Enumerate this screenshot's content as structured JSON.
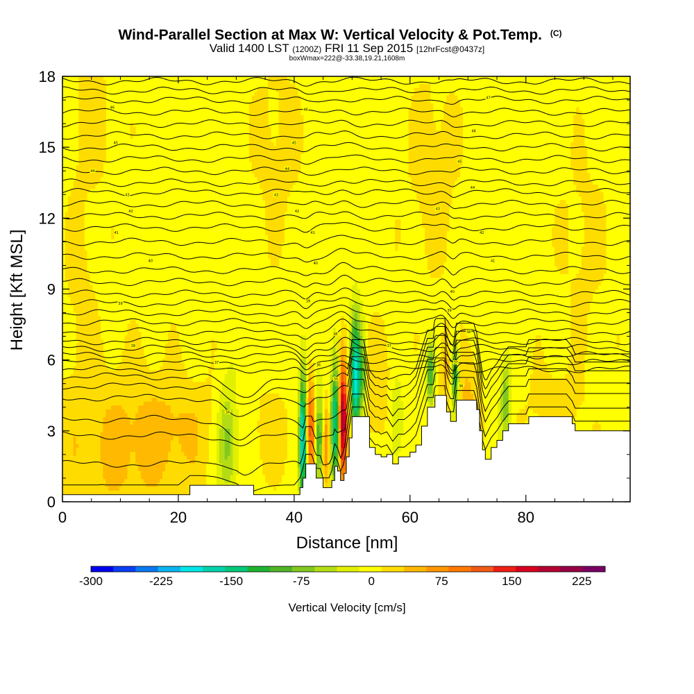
{
  "chart_data": {
    "type": "filled-contour-cross-section",
    "title": "Wind-Parallel Section at Max W: Vertical Velocity & Pot.Temp.",
    "title_mark": "(C)",
    "subtitle_valid": "Valid 1400 LST",
    "subtitle_utc": "(1200Z)",
    "subtitle_date": "FRI 11 Sep 2015",
    "subtitle_fcst": "[12hrFcst@0437z]",
    "subtitle_box": "boxWmax=222@-33.38,19.21,1608m",
    "xlabel": "Distance [nm]",
    "ylabel": "Height [Kft MSL]",
    "xlim": [
      0,
      98
    ],
    "ylim": [
      0,
      18
    ],
    "xticks": [
      0,
      20,
      40,
      60,
      80
    ],
    "yticks": [
      0,
      3,
      6,
      9,
      12,
      15,
      18
    ],
    "colorbar": {
      "label": "Vertical Velocity [cm/s]",
      "ticks": [
        -300,
        -225,
        -150,
        -75,
        0,
        75,
        150,
        225
      ],
      "bounds": [
        -300,
        250
      ],
      "colors": [
        "#0000ee",
        "#0a3ef5",
        "#0a78f0",
        "#0ab4f0",
        "#00e6e6",
        "#00d2aa",
        "#00c878",
        "#1eb432",
        "#50b428",
        "#82c81e",
        "#b4dc14",
        "#e1f000",
        "#ffff00",
        "#ffdc00",
        "#ffb900",
        "#ff9600",
        "#ff7800",
        "#f05a14",
        "#f01e14",
        "#d7001e",
        "#b40032",
        "#960046",
        "#780064"
      ]
    },
    "terrain_kft": [
      [
        0,
        0.3
      ],
      [
        10,
        0.3
      ],
      [
        20,
        0.3
      ],
      [
        22,
        0.7
      ],
      [
        30,
        0.7
      ],
      [
        33,
        0.3
      ],
      [
        40,
        0.3
      ],
      [
        41,
        0.6
      ],
      [
        41.5,
        1.0
      ],
      [
        42,
        1.6
      ],
      [
        43,
        1.6
      ],
      [
        43.8,
        1.0
      ],
      [
        44.5,
        1.0
      ],
      [
        45,
        0.6
      ],
      [
        46,
        0.6
      ],
      [
        46.5,
        0.9
      ],
      [
        47,
        1.5
      ],
      [
        47.5,
        1.3
      ],
      [
        48,
        0.9
      ],
      [
        48.6,
        1.2
      ],
      [
        49,
        1.9
      ],
      [
        49.5,
        2.7
      ],
      [
        50,
        3.6
      ],
      [
        52,
        3.6
      ],
      [
        53,
        2.3
      ],
      [
        54,
        2.0
      ],
      [
        54.5,
        2.0
      ],
      [
        55,
        1.9
      ],
      [
        56,
        2.0
      ],
      [
        57,
        1.6
      ],
      [
        58,
        1.9
      ],
      [
        59,
        1.9
      ],
      [
        60,
        2.1
      ],
      [
        61,
        2.4
      ],
      [
        62,
        3.2
      ],
      [
        63,
        4.0
      ],
      [
        64,
        4.0
      ],
      [
        64.3,
        4.5
      ],
      [
        66,
        4.5
      ],
      [
        66.3,
        3.8
      ],
      [
        67,
        3.4
      ],
      [
        67.5,
        3.4
      ],
      [
        68,
        4.3
      ],
      [
        71,
        4.3
      ],
      [
        71.5,
        3.9
      ],
      [
        72,
        3.0
      ],
      [
        72.5,
        2.2
      ],
      [
        73,
        1.8
      ],
      [
        74,
        2.3
      ],
      [
        75,
        2.6
      ],
      [
        76,
        3.0
      ],
      [
        77,
        3.3
      ],
      [
        80,
        3.3
      ],
      [
        80.5,
        3.6
      ],
      [
        87,
        3.6
      ],
      [
        88,
        3.3
      ],
      [
        88.5,
        3.0
      ],
      [
        98,
        3.0
      ]
    ],
    "w_features": [
      {
        "x": 10,
        "z": 2.2,
        "sx": 8,
        "sz": 2.5,
        "w": 40
      },
      {
        "x": 20,
        "z": 3.1,
        "sx": 5,
        "sz": 1.5,
        "w": 25
      },
      {
        "x": 28.5,
        "z": 2.5,
        "sx": 1.2,
        "sz": 1.6,
        "w": -80
      },
      {
        "x": 36,
        "z": 2.8,
        "sx": 2.5,
        "sz": 1.4,
        "w": 25
      },
      {
        "x": 41.5,
        "z": 2.7,
        "sx": 0.45,
        "sz": 2.0,
        "w": -200
      },
      {
        "x": 42.8,
        "z": 3.1,
        "sx": 0.55,
        "sz": 1.6,
        "w": 110
      },
      {
        "x": 44.3,
        "z": 2.6,
        "sx": 0.5,
        "sz": 1.3,
        "w": -120
      },
      {
        "x": 45.5,
        "z": 2.4,
        "sx": 0.45,
        "sz": 1.2,
        "w": 90
      },
      {
        "x": 47.2,
        "z": 3.4,
        "sx": 0.55,
        "sz": 2.0,
        "w": -190
      },
      {
        "x": 48.3,
        "z": 3.4,
        "sx": 0.6,
        "sz": 1.8,
        "w": 222
      },
      {
        "x": 50.6,
        "z": 5.2,
        "sx": 0.6,
        "sz": 1.8,
        "w": -200
      },
      {
        "x": 51.8,
        "z": 5.4,
        "sx": 0.4,
        "sz": 1.2,
        "w": -90
      },
      {
        "x": 54.5,
        "z": 4.6,
        "sx": 2.5,
        "sz": 1.8,
        "w": 30
      },
      {
        "x": 57.5,
        "z": 3.4,
        "sx": 1.0,
        "sz": 1.5,
        "w": -45
      },
      {
        "x": 63.5,
        "z": 5.4,
        "sx": 0.45,
        "sz": 0.9,
        "w": -110
      },
      {
        "x": 66,
        "z": 5.6,
        "sx": 0.7,
        "sz": 1.2,
        "w": 45
      },
      {
        "x": 67.8,
        "z": 5.3,
        "sx": 0.45,
        "sz": 1.0,
        "w": -140
      },
      {
        "x": 70,
        "z": 4.4,
        "sx": 1.5,
        "sz": 1.6,
        "w": 40
      },
      {
        "x": 76.5,
        "z": 4.3,
        "sx": 0.6,
        "sz": 1.2,
        "w": -80
      },
      {
        "x": 85,
        "z": 4.0,
        "sx": 4,
        "sz": 1.3,
        "w": 22
      },
      {
        "x": 5,
        "z": 16,
        "sx": 3,
        "sz": 2,
        "w": 22
      },
      {
        "x": 37,
        "z": 15,
        "sx": 3,
        "sz": 3,
        "w": 20
      },
      {
        "x": 64,
        "z": 14,
        "sx": 3,
        "sz": 3,
        "w": 25
      },
      {
        "x": 90,
        "z": 11,
        "sx": 3,
        "sz": 3,
        "w": 18
      },
      {
        "x": 3,
        "z": 9,
        "sx": 2,
        "sz": 3,
        "w": 18
      }
    ],
    "theta_levels_kft": [
      0.6,
      1.6,
      2.8,
      3.5,
      4.4,
      4.9,
      5.3,
      5.6,
      5.9,
      6.2,
      6.5,
      6.8,
      7.2,
      7.6,
      8.0,
      8.4,
      8.8,
      9.3,
      9.8,
      10.4,
      11.0,
      11.6,
      12.1,
      12.6,
      13.1,
      13.5,
      14.0,
      14.5,
      15.0,
      15.5,
      16.0,
      16.5,
      17.0,
      17.4,
      17.8
    ],
    "theta_labels": [
      {
        "x": 8.6,
        "z": 16.7,
        "text": "46"
      },
      {
        "x": 42,
        "z": 16.6,
        "text": "46"
      },
      {
        "x": 73.5,
        "z": 17.1,
        "text": "47"
      },
      {
        "x": 9.2,
        "z": 15.2,
        "text": "45"
      },
      {
        "x": 40,
        "z": 15.2,
        "text": "45"
      },
      {
        "x": 71,
        "z": 15.7,
        "text": "46"
      },
      {
        "x": 5.2,
        "z": 14.0,
        "text": "44"
      },
      {
        "x": 38.8,
        "z": 14.1,
        "text": "44"
      },
      {
        "x": 68.6,
        "z": 14.4,
        "text": "45"
      },
      {
        "x": 11.2,
        "z": 13.0,
        "text": "43"
      },
      {
        "x": 36.9,
        "z": 13.0,
        "text": "43"
      },
      {
        "x": 70.8,
        "z": 13.3,
        "text": "44"
      },
      {
        "x": 11.8,
        "z": 12.3,
        "text": "42"
      },
      {
        "x": 40.5,
        "z": 12.3,
        "text": "42"
      },
      {
        "x": 64.8,
        "z": 12.4,
        "text": "43"
      },
      {
        "x": 9.3,
        "z": 11.4,
        "text": "41"
      },
      {
        "x": 43.2,
        "z": 11.4,
        "text": "41"
      },
      {
        "x": 72.4,
        "z": 11.4,
        "text": "42"
      },
      {
        "x": 15.2,
        "z": 10.2,
        "text": "40"
      },
      {
        "x": 43.7,
        "z": 10.1,
        "text": "40"
      },
      {
        "x": 74.3,
        "z": 10.2,
        "text": "41"
      },
      {
        "x": 10,
        "z": 8.4,
        "text": "39"
      },
      {
        "x": 42.4,
        "z": 8.5,
        "text": "39"
      },
      {
        "x": 67.3,
        "z": 8.9,
        "text": "40"
      },
      {
        "x": 12.2,
        "z": 6.6,
        "text": "38"
      },
      {
        "x": 66.8,
        "z": 8.1,
        "text": "39"
      },
      {
        "x": 26.6,
        "z": 5.9,
        "text": "37"
      },
      {
        "x": 47.1,
        "z": 7.1,
        "text": "38"
      },
      {
        "x": 70.1,
        "z": 7.2,
        "text": "38"
      },
      {
        "x": 56.4,
        "z": 6.6,
        "text": "37"
      },
      {
        "x": 44.2,
        "z": 5.8,
        "text": "36"
      },
      {
        "x": 67.9,
        "z": 5.9,
        "text": "37"
      },
      {
        "x": 47.2,
        "z": 5.2,
        "text": "35"
      },
      {
        "x": 68.8,
        "z": 4.9,
        "text": "36"
      },
      {
        "x": 28.5,
        "z": 3.8,
        "text": "34"
      }
    ]
  }
}
